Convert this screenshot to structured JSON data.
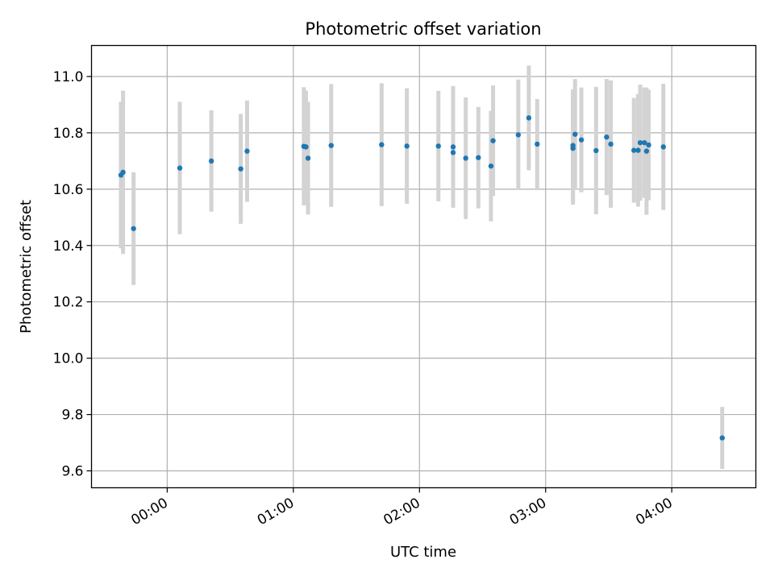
{
  "chart_data": {
    "type": "scatter",
    "title": "Photometric offset variation",
    "xlabel": "UTC time",
    "ylabel": "Photometric offset",
    "xlim": [
      "23:24",
      "04:40"
    ],
    "ylim": [
      9.54,
      11.11
    ],
    "x_ticks": [
      "00:00",
      "01:00",
      "02:00",
      "03:00",
      "04:00"
    ],
    "y_ticks": [
      9.6,
      9.8,
      10.0,
      10.2,
      10.4,
      10.6,
      10.8,
      11.0
    ],
    "y_tick_labels": [
      "9.6",
      "9.8",
      "10.0",
      "10.2",
      "10.4",
      "10.6",
      "10.8",
      "11.0"
    ],
    "grid": true,
    "colors": {
      "point": "#1f77b4",
      "errorbar": "#d3d3d3",
      "grid": "#b0b0b0"
    },
    "points": [
      {
        "x": "23:38",
        "y": 10.65,
        "err": 0.26
      },
      {
        "x": "23:39",
        "y": 10.66,
        "err": 0.29
      },
      {
        "x": "23:44",
        "y": 10.46,
        "err": 0.2
      },
      {
        "x": "00:06",
        "y": 10.675,
        "err": 0.235
      },
      {
        "x": "00:21",
        "y": 10.7,
        "err": 0.18
      },
      {
        "x": "00:35",
        "y": 10.672,
        "err": 0.195
      },
      {
        "x": "00:38",
        "y": 10.735,
        "err": 0.18
      },
      {
        "x": "01:05",
        "y": 10.752,
        "err": 0.21
      },
      {
        "x": "01:06",
        "y": 10.75,
        "err": 0.2
      },
      {
        "x": "01:07",
        "y": 10.71,
        "err": 0.2
      },
      {
        "x": "01:18",
        "y": 10.755,
        "err": 0.218
      },
      {
        "x": "01:42",
        "y": 10.758,
        "err": 0.218
      },
      {
        "x": "01:54",
        "y": 10.753,
        "err": 0.205
      },
      {
        "x": "02:09",
        "y": 10.753,
        "err": 0.196
      },
      {
        "x": "02:16",
        "y": 10.73,
        "err": 0.19
      },
      {
        "x": "02:16",
        "y": 10.75,
        "err": 0.216
      },
      {
        "x": "02:22",
        "y": 10.71,
        "err": 0.216
      },
      {
        "x": "02:28",
        "y": 10.712,
        "err": 0.18
      },
      {
        "x": "02:34",
        "y": 10.682,
        "err": 0.196
      },
      {
        "x": "02:35",
        "y": 10.772,
        "err": 0.196
      },
      {
        "x": "02:47",
        "y": 10.793,
        "err": 0.196
      },
      {
        "x": "02:52",
        "y": 10.853,
        "err": 0.186
      },
      {
        "x": "02:56",
        "y": 10.76,
        "err": 0.16
      },
      {
        "x": "03:13",
        "y": 10.745,
        "err": 0.2
      },
      {
        "x": "03:13",
        "y": 10.755,
        "err": 0.2
      },
      {
        "x": "03:14",
        "y": 10.795,
        "err": 0.196
      },
      {
        "x": "03:17",
        "y": 10.775,
        "err": 0.186
      },
      {
        "x": "03:24",
        "y": 10.737,
        "err": 0.226
      },
      {
        "x": "03:29",
        "y": 10.785,
        "err": 0.206
      },
      {
        "x": "03:31",
        "y": 10.76,
        "err": 0.226
      },
      {
        "x": "03:42",
        "y": 10.738,
        "err": 0.186
      },
      {
        "x": "03:44",
        "y": 10.738,
        "err": 0.2
      },
      {
        "x": "03:45",
        "y": 10.765,
        "err": 0.206
      },
      {
        "x": "03:47",
        "y": 10.765,
        "err": 0.196
      },
      {
        "x": "03:48",
        "y": 10.735,
        "err": 0.226
      },
      {
        "x": "03:49",
        "y": 10.757,
        "err": 0.196
      },
      {
        "x": "03:56",
        "y": 10.75,
        "err": 0.224
      },
      {
        "x": "04:24",
        "y": 9.717,
        "err": 0.11
      }
    ]
  }
}
